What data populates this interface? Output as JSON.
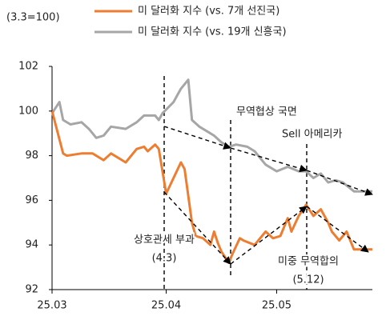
{
  "chart_data": {
    "type": "line",
    "subtitle": "(3.3=100)",
    "series": [
      {
        "name": "미 달러화 지수 (vs. 7개 선진국)",
        "color": "#ed7d31",
        "x": [
          0,
          3,
          4,
          8,
          11,
          14,
          16,
          20,
          23,
          25,
          26,
          28,
          29,
          31,
          33,
          35,
          36,
          38,
          39,
          41,
          43,
          44,
          45,
          46,
          48,
          49,
          51,
          52,
          55,
          58,
          60,
          62,
          64,
          65,
          67,
          69,
          71,
          73,
          75,
          76,
          78,
          80,
          82,
          87
        ],
        "values": [
          100,
          98.1,
          98.0,
          98.1,
          98.1,
          97.8,
          98.1,
          97.7,
          98.3,
          98.4,
          98.2,
          98.5,
          98.3,
          96.3,
          97.0,
          97.7,
          97.4,
          95.0,
          94.4,
          94.3,
          94.0,
          94.6,
          94.1,
          93.7,
          93.2,
          93.6,
          94.3,
          94.2,
          94.0,
          94.6,
          94.3,
          94.4,
          95.2,
          94.6,
          95.3,
          95.8,
          95.3,
          95.6,
          95.0,
          94.6,
          94.2,
          94.6,
          93.8,
          93.8
        ]
      },
      {
        "name": "미 달러화 지수 (vs. 19개 신흥국)",
        "color": "#a6a6a6",
        "x": [
          0,
          2,
          3,
          5,
          8,
          10,
          12,
          14,
          16,
          20,
          23,
          25,
          28,
          29,
          30,
          33,
          35,
          37,
          38,
          40,
          43,
          44,
          46,
          48,
          50,
          53,
          55,
          58,
          61,
          64,
          67,
          69,
          71,
          73,
          75,
          77,
          79,
          82,
          87
        ],
        "values": [
          99.9,
          100.4,
          99.6,
          99.4,
          99.5,
          99.2,
          98.8,
          98.9,
          99.3,
          99.2,
          99.5,
          99.8,
          99.8,
          99.6,
          99.9,
          100.4,
          101.0,
          101.4,
          99.6,
          99.3,
          99.0,
          98.9,
          98.6,
          98.4,
          98.5,
          98.4,
          98.2,
          97.6,
          97.3,
          97.5,
          97.3,
          97.3,
          97.0,
          97.2,
          96.8,
          96.9,
          96.8,
          96.4,
          96.4
        ]
      }
    ],
    "xlim": [
      0,
      87
    ],
    "xticks": [
      {
        "value": 0,
        "label": "25.03"
      },
      {
        "value": 31,
        "label": "25.04"
      },
      {
        "value": 61,
        "label": "25.05"
      }
    ],
    "ylim": [
      92,
      102
    ],
    "yticks": [
      92,
      94,
      96,
      98,
      100,
      102
    ],
    "grid": false,
    "annotations": [
      "무역협상 국면",
      "Sell 아메리카",
      "상호관세 부과",
      "(4.3)",
      "미중 무역합의",
      "(5.12)"
    ]
  }
}
